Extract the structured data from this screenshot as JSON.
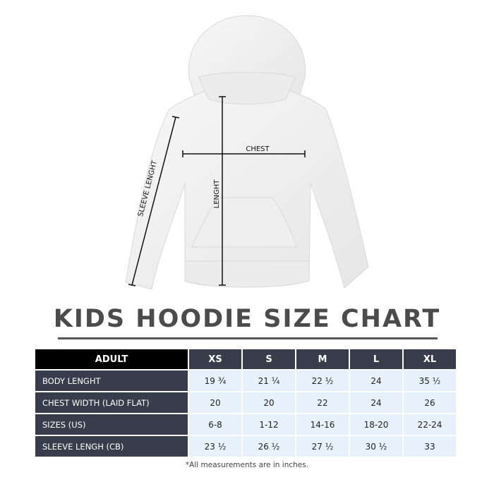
{
  "diagram": {
    "chest_label": "CHEST",
    "length_label": "LENGHT",
    "sleeve_label": "SLEEVE LENGHT"
  },
  "title": "KIDS HOODIE SIZE CHART",
  "table": {
    "header": [
      "ADULT",
      "XS",
      "S",
      "M",
      "L",
      "XL"
    ],
    "rows": [
      {
        "label": "BODY LENGHT",
        "values": [
          "19 ¾",
          "21 ¼",
          "22 ½",
          "24",
          "35 ½"
        ]
      },
      {
        "label": "CHEST WIDTH (LAID FLAT)",
        "values": [
          "20",
          "20",
          "22",
          "24",
          "26"
        ]
      },
      {
        "label": "SIZES (US)",
        "values": [
          "6-8",
          "1-12",
          "14-16",
          "18-20",
          "22-24"
        ]
      },
      {
        "label": "SLEEVE LENGH (CB)",
        "values": [
          "23 ½",
          "26 ½",
          "27 ½",
          "30 ½",
          "33"
        ]
      }
    ]
  },
  "note": "*All measurements are in inches.",
  "colors": {
    "header_dark": "#383d4c",
    "header_black": "#000000",
    "cell_light": "#e7f1fc",
    "title": "#4b4b4b"
  }
}
